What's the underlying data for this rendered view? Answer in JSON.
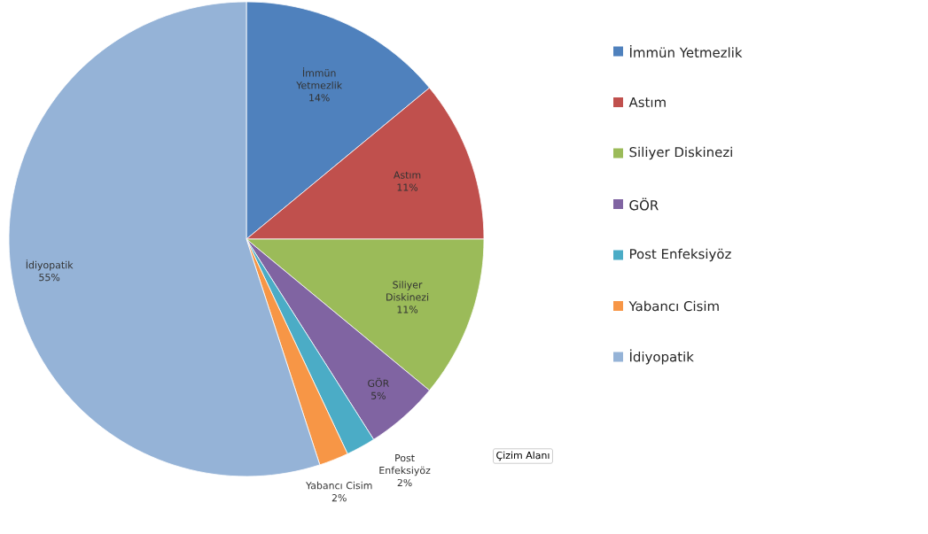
{
  "chart_data": {
    "type": "pie",
    "categories": [
      "İmmün Yetmezlik",
      "Astım",
      "Siliyer Diskinezi",
      "GÖR",
      "Post Enfeksiyöz",
      "Yabancı Cisim",
      "İdiyopatik"
    ],
    "values": [
      14,
      11,
      11,
      5,
      2,
      2,
      55
    ],
    "colors": [
      "#4f81bd",
      "#c0504d",
      "#9bbb59",
      "#8064a2",
      "#4bacc6",
      "#f79646",
      "#95b3d7"
    ],
    "value_labels": [
      "14%",
      "11%",
      "11%",
      "5%",
      "2%",
      "2%",
      "55%"
    ],
    "legend": "right",
    "annotations": [
      "Çizim Alanı"
    ]
  }
}
